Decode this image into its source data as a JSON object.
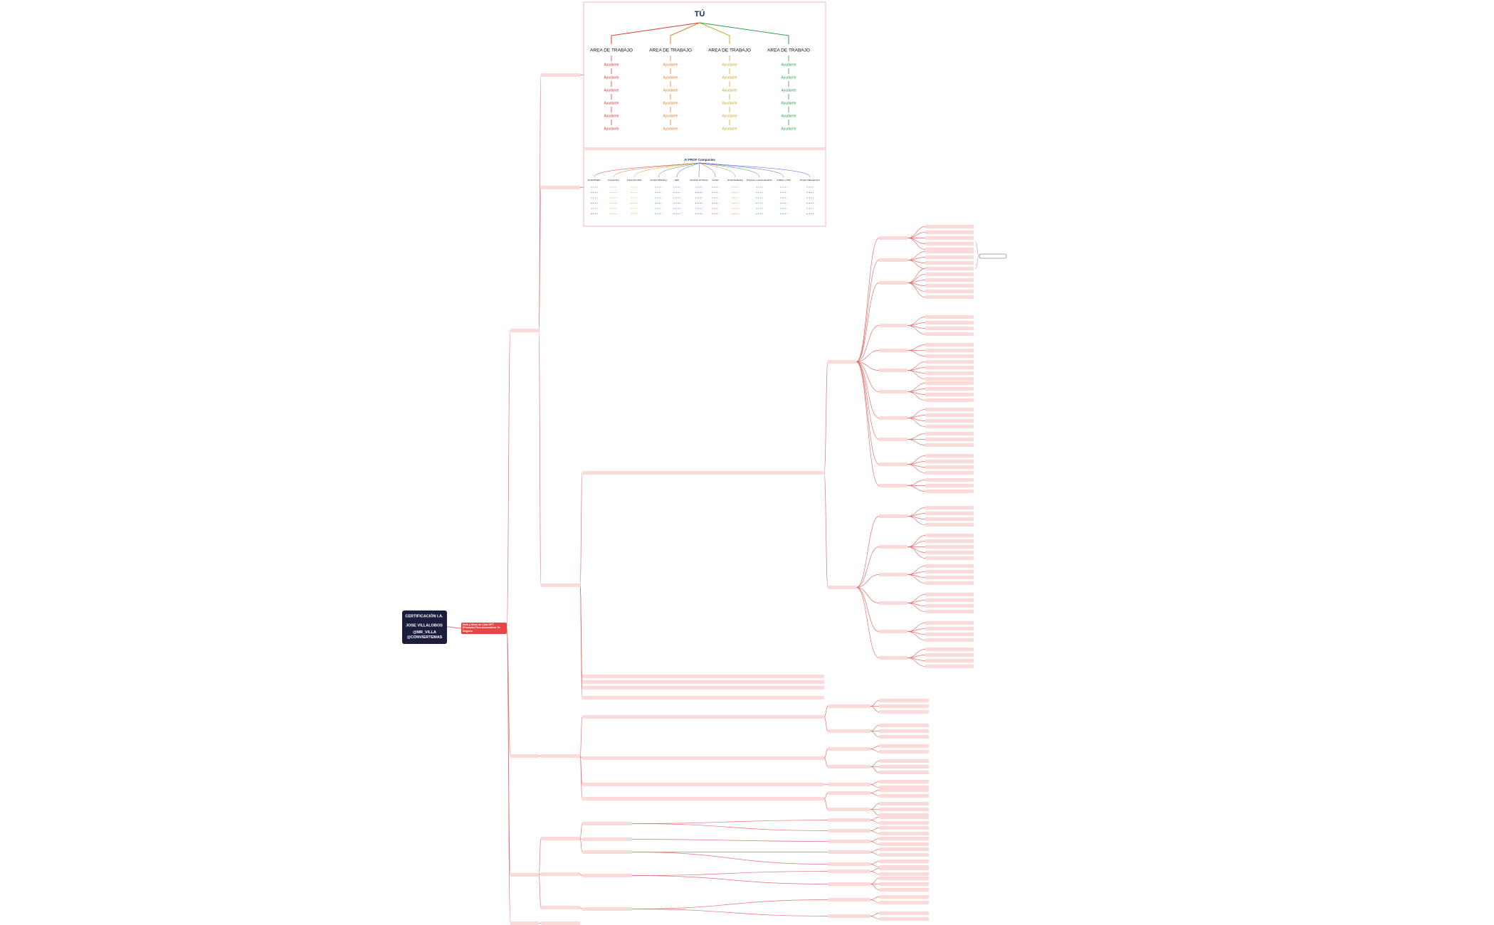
{
  "root": {
    "lines": [
      "CERTIFICACIÓN I.A.",
      "JOSE VILLALOBOS",
      "@MR_VILLA @CONVIERTEMAS"
    ]
  },
  "main_topic": "Guía y Ideas de Chat GPT (Prompts) Para Automatizar Tu Negocio",
  "team_diagram": {
    "title": "TÚ",
    "areas": [
      {
        "label": "AREA DE TRABAJO",
        "color": "#d93838",
        "helpers": [
          "Ayudante",
          "Ayudante",
          "Ayudante",
          "Ayudante",
          "Ayudante",
          "Ayudante"
        ]
      },
      {
        "label": "AREA DE TRABAJO",
        "color": "#d9832e",
        "helpers": [
          "Ayudante",
          "Ayudante",
          "Ayudante",
          "Ayudante",
          "Ayudante",
          "Ayudante"
        ]
      },
      {
        "label": "AREA DE TRABAJO",
        "color": "#c9a92c",
        "helpers": [
          "Ayudante",
          "Ayudante",
          "Ayudante",
          "Ayudante",
          "Ayudante",
          "Ayudante"
        ]
      },
      {
        "label": "AREA DE TRABAJO",
        "color": "#2e9c4a",
        "helpers": [
          "Ayudante",
          "Ayudante",
          "Ayudante",
          "Ayudante",
          "Ayudante",
          "Ayudante"
        ]
      }
    ]
  },
  "companies_diagram": {
    "title": "AI PROF Companies",
    "columns": [
      "Email Builder",
      "Copywriting",
      "Contenido Web",
      "Content Branding",
      "SEO",
      "Atención al Cliente",
      "Ventas",
      "Email Marketing",
      "Procesos y Automatización",
      "Análisis y KPIs",
      "Project Management"
    ]
  }
}
